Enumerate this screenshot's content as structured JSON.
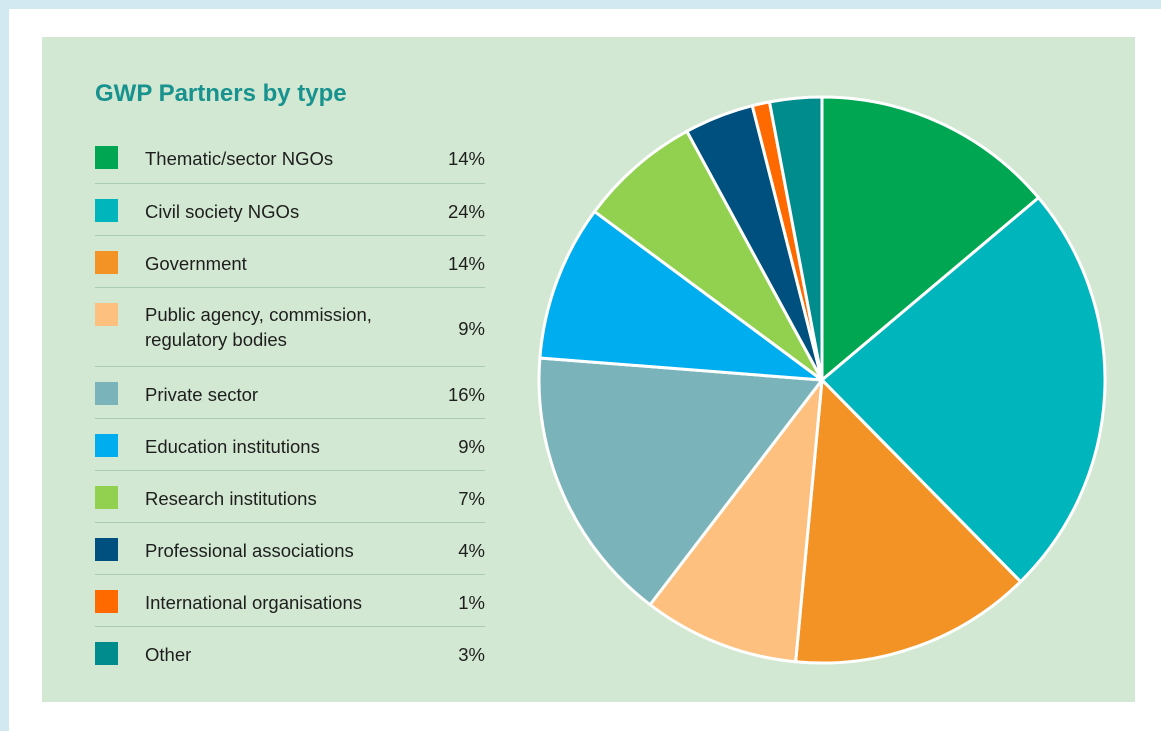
{
  "chart_data": {
    "type": "pie",
    "title": "GWP Partners by type",
    "slices": [
      {
        "label": "Thematic/sector NGOs",
        "value": 14,
        "display": "14%",
        "color": "#00a651"
      },
      {
        "label": "Civil society NGOs",
        "value": 24,
        "display": "24%",
        "color": "#00b5bb"
      },
      {
        "label": "Government",
        "value": 14,
        "display": "14%",
        "color": "#f39325"
      },
      {
        "label": "Public agency, commission, regulatory bodies",
        "value": 9,
        "display": "9%",
        "color": "#fdc07f"
      },
      {
        "label": "Private sector",
        "value": 16,
        "display": "16%",
        "color": "#7ab4ba"
      },
      {
        "label": "Education institutions",
        "value": 9,
        "display": "9%",
        "color": "#00adef"
      },
      {
        "label": "Research institutions",
        "value": 7,
        "display": "7%",
        "color": "#92d050"
      },
      {
        "label": "Professional associations",
        "value": 4,
        "display": "4%",
        "color": "#00507f"
      },
      {
        "label": "International organisations",
        "value": 1,
        "display": "1%",
        "color": "#ff6a00"
      },
      {
        "label": "Other",
        "value": 3,
        "display": "3%",
        "color": "#008c8c"
      }
    ],
    "legend_position": "left"
  },
  "colors": {
    "panel_background": "#d2e8d2",
    "title": "#17928e",
    "slice_border": "#ffffff"
  }
}
